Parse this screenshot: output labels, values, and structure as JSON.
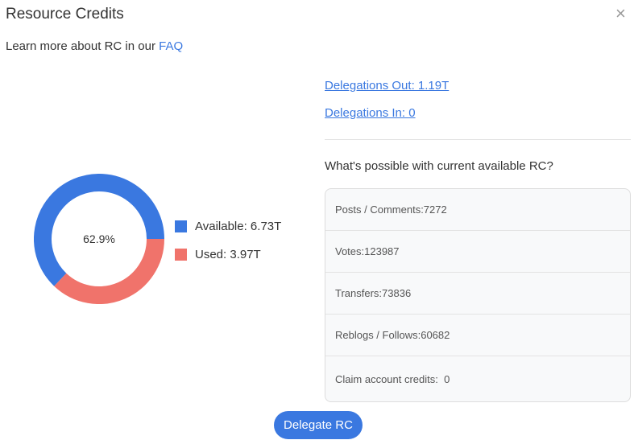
{
  "dialog": {
    "title": "Resource Credits",
    "close_glyph": "×"
  },
  "learn": {
    "text": "Learn more about RC in our ",
    "link": "FAQ"
  },
  "rc_chart": {
    "center_label": "62.9%",
    "available_fraction": 0.629,
    "colors": {
      "available": "#3a78e0",
      "used": "#f0736b"
    },
    "legend": {
      "available": "Available: 6.73T",
      "used": "Used: 3.97T"
    }
  },
  "delegations": {
    "out": "Delegations Out: 1.19T",
    "in": "Delegations In: 0"
  },
  "possible": {
    "heading": "What's possible with current available RC?",
    "rows": [
      "Posts / Comments:7272",
      "Votes:123987",
      "Transfers:73836",
      "Reblogs / Follows:60682",
      "Claim account credits:  0"
    ]
  },
  "actions": {
    "delegate_label": "Delegate RC"
  }
}
